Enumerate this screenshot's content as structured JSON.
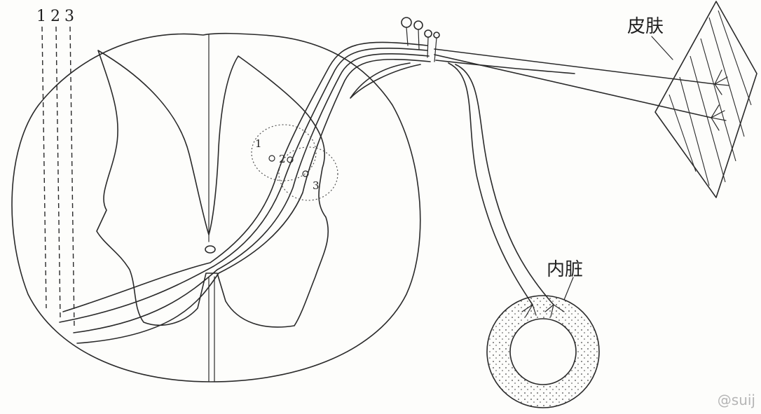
{
  "labels": {
    "skin": "皮肤",
    "viscera": "内脏",
    "tracts": [
      "1",
      "2",
      "3"
    ],
    "horn_markers": [
      "1",
      "2",
      "3"
    ]
  },
  "watermark": "@suij"
}
